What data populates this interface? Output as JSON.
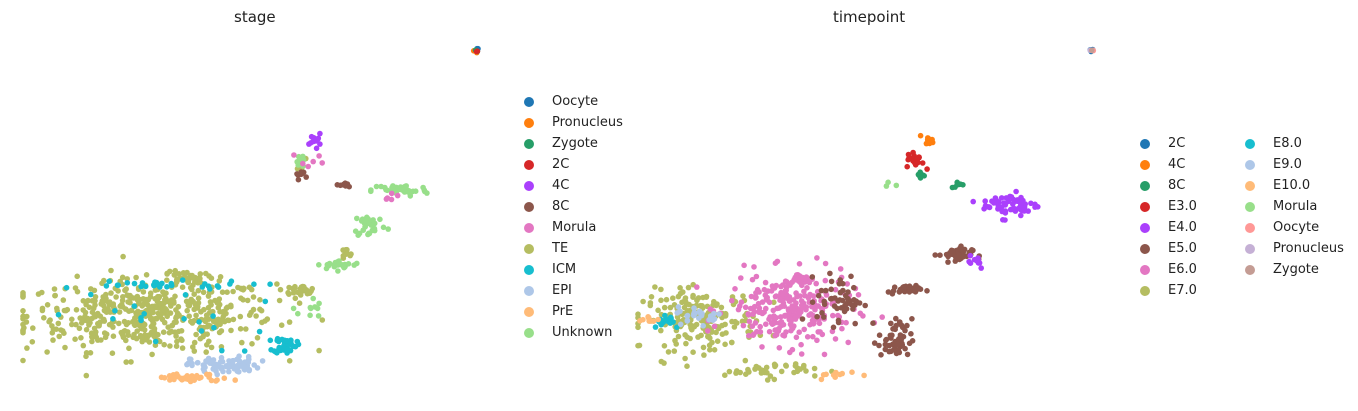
{
  "chart_data": [
    {
      "type": "scatter",
      "title": "stage",
      "xlabel": "",
      "ylabel": "",
      "xlim": [
        0,
        10
      ],
      "ylim": [
        0,
        10
      ],
      "grid": false,
      "legend_placement": "right",
      "categories": [
        {
          "label": "Oocyte",
          "color": "#1f77b4"
        },
        {
          "label": "Pronucleus",
          "color": "#ff7f0e"
        },
        {
          "label": "Zygote",
          "color": "#279e68"
        },
        {
          "label": "2C",
          "color": "#d62728"
        },
        {
          "label": "4C",
          "color": "#aa40fc"
        },
        {
          "label": "8C",
          "color": "#8c564b"
        },
        {
          "label": "Morula",
          "color": "#e377c2"
        },
        {
          "label": "TE",
          "color": "#b5bd61"
        },
        {
          "label": "ICM",
          "color": "#17becf"
        },
        {
          "label": "EPI",
          "color": "#aec7e8"
        },
        {
          "label": "PrE",
          "color": "#ffbb78"
        },
        {
          "label": "Unknown",
          "color": "#98df8a"
        }
      ],
      "clusters": [
        {
          "category": "TE",
          "cx": 2.77,
          "cy": 2.14,
          "sx": 2.2,
          "sy": 0.85,
          "n": 500
        },
        {
          "category": "TE",
          "cx": 5.96,
          "cy": 2.86,
          "sx": 0.3,
          "sy": 0.1,
          "n": 30
        },
        {
          "category": "TE",
          "cx": 3.51,
          "cy": 3.14,
          "sx": 0.4,
          "sy": 0.2,
          "n": 40
        },
        {
          "category": "TE",
          "cx": 5.96,
          "cy": 6.43,
          "sx": 0.1,
          "sy": 0.15,
          "n": 8
        },
        {
          "category": "TE",
          "cx": 6.91,
          "cy": 3.86,
          "sx": 0.15,
          "sy": 0.15,
          "n": 10
        },
        {
          "category": "Unknown",
          "cx": 8.09,
          "cy": 5.71,
          "sx": 0.5,
          "sy": 0.15,
          "n": 40
        },
        {
          "category": "Unknown",
          "cx": 7.45,
          "cy": 4.71,
          "sx": 0.3,
          "sy": 0.3,
          "n": 30
        },
        {
          "category": "Unknown",
          "cx": 6.81,
          "cy": 3.57,
          "sx": 0.4,
          "sy": 0.1,
          "n": 25
        },
        {
          "category": "Unknown",
          "cx": 6.17,
          "cy": 2.29,
          "sx": 0.2,
          "sy": 0.3,
          "n": 10
        },
        {
          "category": "Unknown",
          "cx": 5.96,
          "cy": 6.57,
          "sx": 0.1,
          "sy": 0.2,
          "n": 10
        },
        {
          "category": "ICM",
          "cx": 5.64,
          "cy": 1.29,
          "sx": 0.2,
          "sy": 0.2,
          "n": 40
        },
        {
          "category": "ICM",
          "cx": 2.77,
          "cy": 3.0,
          "sx": 1.8,
          "sy": 0.1,
          "n": 30
        },
        {
          "category": "ICM",
          "cx": 3.0,
          "cy": 2.0,
          "sx": 2.0,
          "sy": 0.8,
          "n": 20
        },
        {
          "category": "EPI",
          "cx": 4.36,
          "cy": 0.71,
          "sx": 0.6,
          "sy": 0.2,
          "n": 80
        },
        {
          "category": "PrE",
          "cx": 3.62,
          "cy": 0.34,
          "sx": 0.7,
          "sy": 0.1,
          "n": 40
        },
        {
          "category": "4C",
          "cx": 6.28,
          "cy": 7.14,
          "sx": 0.1,
          "sy": 0.15,
          "n": 12
        },
        {
          "category": "8C",
          "cx": 5.96,
          "cy": 6.14,
          "sx": 0.1,
          "sy": 0.1,
          "n": 8
        },
        {
          "category": "8C",
          "cx": 6.91,
          "cy": 5.86,
          "sx": 0.15,
          "sy": 0.08,
          "n": 8
        },
        {
          "category": "Morula",
          "cx": 6.17,
          "cy": 6.57,
          "sx": 0.3,
          "sy": 0.2,
          "n": 6
        },
        {
          "category": "Morula",
          "cx": 7.98,
          "cy": 5.57,
          "sx": 0.2,
          "sy": 0.1,
          "n": 5
        },
        {
          "category": "Oocyte",
          "cx": 9.72,
          "cy": 9.71,
          "sx": 0.04,
          "sy": 0.04,
          "n": 3
        },
        {
          "category": "Pronucleus",
          "cx": 9.7,
          "cy": 9.68,
          "sx": 0.04,
          "sy": 0.04,
          "n": 3
        },
        {
          "category": "Zygote",
          "cx": 9.72,
          "cy": 9.7,
          "sx": 0.04,
          "sy": 0.04,
          "n": 2
        },
        {
          "category": "2C",
          "cx": 9.71,
          "cy": 9.66,
          "sx": 0.04,
          "sy": 0.04,
          "n": 2
        }
      ]
    },
    {
      "type": "scatter",
      "title": "timepoint",
      "xlabel": "",
      "ylabel": "",
      "xlim": [
        0,
        10
      ],
      "ylim": [
        0,
        10
      ],
      "grid": false,
      "legend_placement": "right",
      "categories": [
        {
          "label": "2C",
          "color": "#1f77b4"
        },
        {
          "label": "4C",
          "color": "#ff7f0e"
        },
        {
          "label": "8C",
          "color": "#279e68"
        },
        {
          "label": "E3.0",
          "color": "#d62728"
        },
        {
          "label": "E4.0",
          "color": "#aa40fc"
        },
        {
          "label": "E5.0",
          "color": "#8c564b"
        },
        {
          "label": "E6.0",
          "color": "#e377c2"
        },
        {
          "label": "E7.0",
          "color": "#b5bd61"
        },
        {
          "label": "E8.0",
          "color": "#17becf"
        },
        {
          "label": "E9.0",
          "color": "#aec7e8"
        },
        {
          "label": "E10.0",
          "color": "#ffbb78"
        },
        {
          "label": "Morula",
          "color": "#98df8a"
        },
        {
          "label": "Oocyte",
          "color": "#ff9896"
        },
        {
          "label": "Pronucleus",
          "color": "#c5b0d5"
        },
        {
          "label": "Zygote",
          "color": "#c49c94"
        }
      ],
      "clusters": [
        {
          "category": "E7.0",
          "cx": 1.38,
          "cy": 2.0,
          "sx": 1.0,
          "sy": 0.7,
          "n": 200
        },
        {
          "category": "E7.0",
          "cx": 2.87,
          "cy": 0.57,
          "sx": 0.8,
          "sy": 0.2,
          "n": 40
        },
        {
          "category": "E6.0",
          "cx": 3.3,
          "cy": 2.29,
          "sx": 1.1,
          "sy": 0.85,
          "n": 250
        },
        {
          "category": "E6.0",
          "cx": 3.51,
          "cy": 3.2,
          "sx": 0.2,
          "sy": 0.1,
          "n": 30
        },
        {
          "category": "E5.0",
          "cx": 6.81,
          "cy": 3.86,
          "sx": 0.3,
          "sy": 0.2,
          "n": 40
        },
        {
          "category": "E5.0",
          "cx": 5.74,
          "cy": 2.86,
          "sx": 0.3,
          "sy": 0.1,
          "n": 30
        },
        {
          "category": "E5.0",
          "cx": 5.53,
          "cy": 1.43,
          "sx": 0.3,
          "sy": 0.5,
          "n": 50
        },
        {
          "category": "E5.0",
          "cx": 4.36,
          "cy": 2.57,
          "sx": 0.4,
          "sy": 0.6,
          "n": 50
        },
        {
          "category": "E4.0",
          "cx": 7.98,
          "cy": 5.29,
          "sx": 0.5,
          "sy": 0.3,
          "n": 60
        },
        {
          "category": "E4.0",
          "cx": 7.23,
          "cy": 3.71,
          "sx": 0.2,
          "sy": 0.2,
          "n": 10
        },
        {
          "category": "E8.0",
          "cx": 0.64,
          "cy": 2.0,
          "sx": 0.3,
          "sy": 0.2,
          "n": 15
        },
        {
          "category": "E9.0",
          "cx": 1.38,
          "cy": 2.14,
          "sx": 0.4,
          "sy": 0.2,
          "n": 25
        },
        {
          "category": "E10.0",
          "cx": 0.32,
          "cy": 2.0,
          "sx": 0.2,
          "sy": 0.1,
          "n": 10
        },
        {
          "category": "E10.0",
          "cx": 4.36,
          "cy": 0.43,
          "sx": 0.4,
          "sy": 0.1,
          "n": 10
        },
        {
          "category": "E3.0",
          "cx": 5.96,
          "cy": 6.57,
          "sx": 0.15,
          "sy": 0.2,
          "n": 20
        },
        {
          "category": "4C",
          "cx": 6.28,
          "cy": 7.14,
          "sx": 0.1,
          "sy": 0.1,
          "n": 10
        },
        {
          "category": "8C",
          "cx": 6.06,
          "cy": 6.14,
          "sx": 0.1,
          "sy": 0.08,
          "n": 8
        },
        {
          "category": "8C",
          "cx": 6.91,
          "cy": 5.86,
          "sx": 0.15,
          "sy": 0.08,
          "n": 8
        },
        {
          "category": "Morula",
          "cx": 5.43,
          "cy": 5.86,
          "sx": 0.15,
          "sy": 0.1,
          "n": 3
        },
        {
          "category": "2C",
          "cx": 9.72,
          "cy": 9.71,
          "sx": 0.04,
          "sy": 0.04,
          "n": 3
        },
        {
          "category": "Oocyte",
          "cx": 9.74,
          "cy": 9.7,
          "sx": 0.04,
          "sy": 0.04,
          "n": 2
        },
        {
          "category": "Pronucleus",
          "cx": 9.7,
          "cy": 9.72,
          "sx": 0.03,
          "sy": 0.03,
          "n": 1
        },
        {
          "category": "Zygote",
          "cx": 9.73,
          "cy": 9.68,
          "sx": 0.03,
          "sy": 0.03,
          "n": 1
        }
      ]
    }
  ]
}
